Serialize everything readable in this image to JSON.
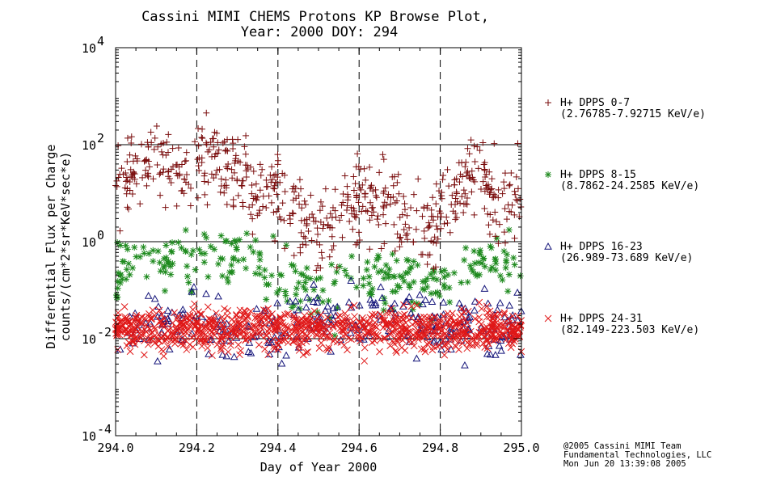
{
  "chart_data": {
    "type": "scatter",
    "title": "Cassini MIMI CHEMS Protons KP Browse Plot,",
    "subtitle": "Year: 2000 DOY: 294",
    "xlabel": "Day of Year 2000",
    "ylabel": "Differential Flux per Charge",
    "ylabel2": "counts/(cm*2*sr*KeV*sec*e)",
    "xlim": [
      294.0,
      295.0
    ],
    "ylim_log10": [
      -4,
      4
    ],
    "yscale": "log",
    "x_ticks": [
      "294.0",
      "294.2",
      "294.4",
      "294.6",
      "294.8",
      "295.0"
    ],
    "x_tick_values": [
      294.0,
      294.2,
      294.4,
      294.6,
      294.8,
      295.0
    ],
    "y_ticks": [
      {
        "base": "10",
        "exp": "4",
        "log10": 4
      },
      {
        "base": "10",
        "exp": "2",
        "log10": 2
      },
      {
        "base": "10",
        "exp": "0",
        "log10": 0
      },
      {
        "base": "10",
        "exp": "-2",
        "log10": -2
      },
      {
        "base": "10",
        "exp": "-4",
        "log10": -4
      }
    ],
    "vertical_dashed_lines": [
      294.2,
      294.4,
      294.6,
      294.8
    ],
    "horizontal_reference_lines_log10": [
      2,
      0,
      -2
    ],
    "series": [
      {
        "name": "H+ DPPS 0-7",
        "range": "(2.76785-7.92715 KeV/e)",
        "marker": "+",
        "color": "#7a0c0c",
        "profile": [
          [
            294.0,
            1.2
          ],
          [
            294.05,
            1.6
          ],
          [
            294.1,
            1.9
          ],
          [
            294.15,
            1.3
          ],
          [
            294.2,
            1.8
          ],
          [
            294.25,
            1.7
          ],
          [
            294.3,
            1.5
          ],
          [
            294.35,
            1.0
          ],
          [
            294.4,
            0.9
          ],
          [
            294.45,
            0.5
          ],
          [
            294.5,
            0.3
          ],
          [
            294.55,
            0.4
          ],
          [
            294.6,
            0.9
          ],
          [
            294.65,
            0.9
          ],
          [
            294.7,
            0.6
          ],
          [
            294.75,
            0.2
          ],
          [
            294.8,
            0.4
          ],
          [
            294.85,
            1.3
          ],
          [
            294.9,
            1.4
          ],
          [
            294.95,
            0.7
          ],
          [
            295.0,
            1.1
          ]
        ],
        "spread": 0.7,
        "n_points": 620
      },
      {
        "name": "H+ DPPS 8-15",
        "range": "(8.7862-24.2585 KeV/e)",
        "marker": "*",
        "color": "#1e8a1e",
        "profile": [
          [
            294.0,
            -0.6
          ],
          [
            294.1,
            -0.3
          ],
          [
            294.2,
            -0.5
          ],
          [
            294.3,
            -0.2
          ],
          [
            294.4,
            -0.7
          ],
          [
            294.5,
            -1.1
          ],
          [
            294.6,
            -0.7
          ],
          [
            294.7,
            -0.9
          ],
          [
            294.8,
            -0.8
          ],
          [
            294.9,
            -0.4
          ],
          [
            295.0,
            -0.5
          ]
        ],
        "spread": 0.55,
        "n_points": 280
      },
      {
        "name": "H+ DPPS 16-23",
        "range": "(26.989-73.689 KeV/e)",
        "marker": "triangle",
        "color": "#15157a",
        "profile": [
          [
            294.0,
            -1.8
          ],
          [
            294.2,
            -1.6
          ],
          [
            294.4,
            -1.8
          ],
          [
            294.6,
            -1.6
          ],
          [
            294.8,
            -1.8
          ],
          [
            295.0,
            -1.7
          ]
        ],
        "spread": 0.6,
        "n_points": 260
      },
      {
        "name": "H+ DPPS 24-31",
        "range": "(82.149-223.503 KeV/e)",
        "marker": "x",
        "color": "#e01818",
        "profile": [
          [
            294.0,
            -1.8
          ],
          [
            294.5,
            -1.8
          ],
          [
            295.0,
            -1.8
          ]
        ],
        "spread": 0.35,
        "n_points": 950
      }
    ]
  },
  "credits": {
    "line1": "@2005 Cassini MIMI Team",
    "line2": "Fundamental Technologies, LLC",
    "line3": "Mon Jun 20 13:39:08 2005"
  }
}
